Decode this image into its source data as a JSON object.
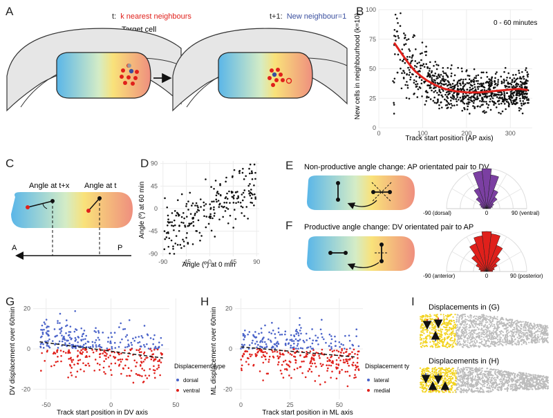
{
  "panel_labels": [
    "A",
    "B",
    "C",
    "D",
    "E",
    "F",
    "G",
    "H",
    "I"
  ],
  "panel_a": {
    "t_prefix": "t:",
    "t_text": "k nearest neighbours",
    "target_label": "Target cell",
    "t1_prefix": "t+1:",
    "t1_text": "New neighbour=1",
    "colors": {
      "red": "#e0201b",
      "blue": "#3a4f9f"
    }
  },
  "panel_c": {
    "angle_tx": "Angle at t+x",
    "angle_t": "Angle at t",
    "axis_a": "A",
    "axis_p": "P"
  },
  "panel_e": {
    "title": "Non-productive angle change: AP orientated pair to DV",
    "rose_left": "-90 (dorsal)",
    "rose_mid": "0",
    "rose_right": "90 (ventral)",
    "color": "#7b3fa2"
  },
  "panel_f": {
    "title": "Productive angle change: DV orientated pair to AP",
    "rose_left": "-90 (anterior)",
    "rose_mid": "0",
    "rose_right": "90 (posterior)",
    "color": "#e0201b"
  },
  "panel_i": {
    "title_g": "Displacements in (G)",
    "title_h": "Displacements in (H)"
  },
  "chart_data": [
    {
      "panel": "B",
      "type": "scatter",
      "annotation": "0 - 60 minutes",
      "xlabel": "Track start position (AP axis)",
      "ylabel": "New cells in neighbourhood (k=10)",
      "xlim": [
        0,
        350
      ],
      "ylim": [
        0,
        100
      ],
      "xticks": [
        0,
        100,
        200,
        300
      ],
      "yticks": [
        0,
        25,
        50,
        75,
        100
      ],
      "grid": true,
      "trend": {
        "color": "#e0201b",
        "x": [
          35,
          50,
          65,
          80,
          95,
          110,
          130,
          150,
          175,
          200,
          230,
          260,
          290,
          320,
          340
        ],
        "y": [
          72,
          64,
          56,
          49,
          44,
          40,
          36,
          33,
          31,
          30,
          30,
          31,
          32,
          33,
          32
        ]
      }
    },
    {
      "panel": "D",
      "type": "scatter",
      "xlabel": "Angle (º) at 0 min",
      "ylabel": "Angle (º) at 60 min",
      "xlim": [
        -95,
        95
      ],
      "ylim": [
        -95,
        95
      ],
      "xticks": [
        -90,
        -45,
        0,
        45,
        90
      ],
      "yticks": [
        -90,
        -45,
        0,
        45,
        90
      ],
      "grid": true
    },
    {
      "panel": "G",
      "type": "scatter",
      "xlabel": "Track start position in DV axis",
      "ylabel": "DV displacement over 60min",
      "xlim": [
        -60,
        45
      ],
      "ylim": [
        -25,
        25
      ],
      "xticks": [
        -50,
        0,
        50
      ],
      "yticks": [
        -20,
        0,
        20
      ],
      "legend_title": "Displacement type",
      "series": [
        {
          "name": "dorsal",
          "color": "#4a63c9"
        },
        {
          "name": "ventral",
          "color": "#e0201b"
        }
      ],
      "trend": {
        "x": [
          -55,
          40
        ],
        "y": [
          3.5,
          -4.5
        ]
      }
    },
    {
      "panel": "H",
      "type": "scatter",
      "xlabel": "Track start position in ML axis",
      "ylabel": "ML displacement over 60min",
      "xlim": [
        -3,
        62
      ],
      "ylim": [
        -25,
        25
      ],
      "xticks": [
        0,
        25,
        50
      ],
      "yticks": [
        -20,
        0,
        20
      ],
      "legend_title": "Displacement ty",
      "series": [
        {
          "name": "lateral",
          "color": "#4a63c9"
        },
        {
          "name": "medial",
          "color": "#e0201b"
        }
      ],
      "trend": {
        "x": [
          0,
          58
        ],
        "y": [
          1,
          -4
        ]
      }
    },
    {
      "panel": "E-rose",
      "type": "bar",
      "categories": [
        "-90",
        "-75",
        "-60",
        "-45",
        "-30",
        "-15",
        "0",
        "15",
        "30",
        "45",
        "60",
        "75",
        "90"
      ],
      "values": [
        0.1,
        0.15,
        0.2,
        0.35,
        0.55,
        0.95,
        1.0,
        0.85,
        0.5,
        0.35,
        0.2,
        0.15,
        0.1
      ]
    },
    {
      "panel": "F-rose",
      "type": "bar",
      "categories": [
        "-90",
        "-75",
        "-60",
        "-45",
        "-30",
        "-15",
        "0",
        "15",
        "30",
        "45",
        "60",
        "75",
        "90"
      ],
      "values": [
        0.15,
        0.2,
        0.3,
        0.5,
        0.75,
        0.9,
        1.0,
        0.95,
        0.7,
        0.45,
        0.3,
        0.2,
        0.15
      ]
    }
  ]
}
